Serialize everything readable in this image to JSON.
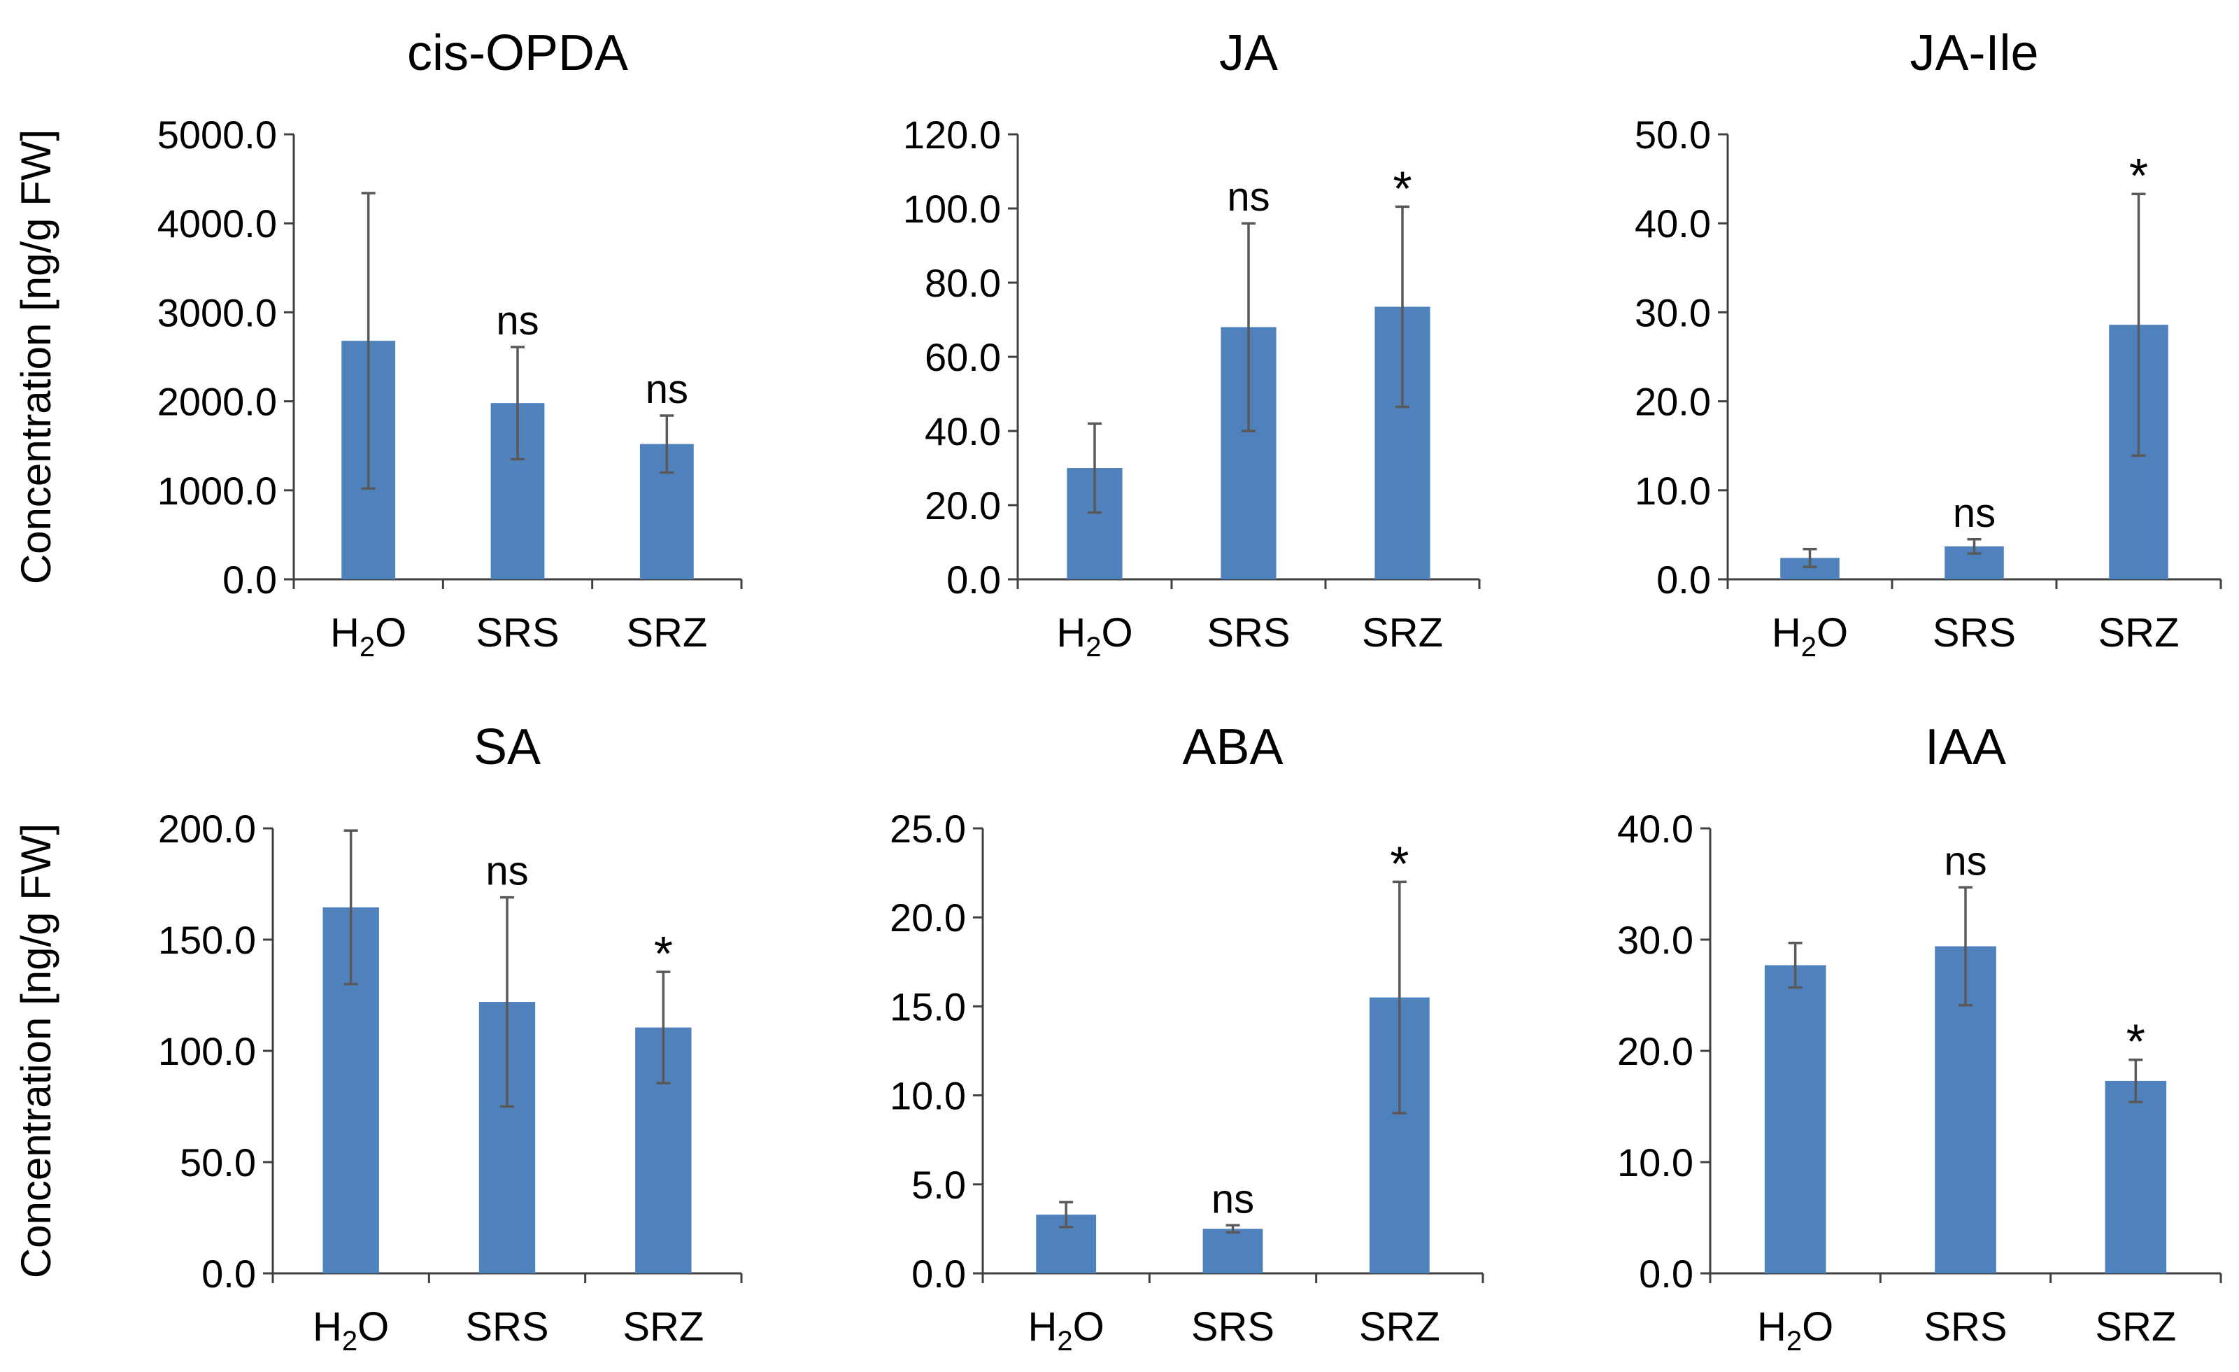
{
  "figure": {
    "y_axis_label": "Concentration [ng/g FW]",
    "bar_color": "#4F81BD",
    "error_color": "#595959",
    "axis_color": "#404040"
  },
  "chart_data": [
    {
      "type": "bar",
      "title": "cis-OPDA",
      "categories": [
        "H2O",
        "SRS",
        "SRZ"
      ],
      "values": [
        2680,
        1980,
        1520
      ],
      "errors": [
        1660,
        630,
        320
      ],
      "significance": [
        "",
        "ns",
        "ns"
      ],
      "ylim": [
        0,
        5000
      ],
      "yticks": [
        "0.0",
        "1000.0",
        "2000.0",
        "3000.0",
        "4000.0",
        "5000.0"
      ],
      "ylabel": "Concentration [ng/g FW]"
    },
    {
      "type": "bar",
      "title": "JA",
      "categories": [
        "H2O",
        "SRS",
        "SRZ"
      ],
      "values": [
        30,
        68,
        73.5
      ],
      "errors": [
        12,
        28,
        27
      ],
      "significance": [
        "",
        "ns",
        "*"
      ],
      "ylim": [
        0,
        120
      ],
      "yticks": [
        "0.0",
        "20.0",
        "40.0",
        "60.0",
        "80.0",
        "100.0",
        "120.0"
      ],
      "ylabel": ""
    },
    {
      "type": "bar",
      "title": "JA-Ile",
      "categories": [
        "H2O",
        "SRS",
        "SRZ"
      ],
      "values": [
        2.4,
        3.7,
        28.6
      ],
      "errors": [
        1.0,
        0.8,
        14.7
      ],
      "significance": [
        "",
        "ns",
        "*"
      ],
      "ylim": [
        0,
        50
      ],
      "yticks": [
        "0.0",
        "10.0",
        "20.0",
        "30.0",
        "40.0",
        "50.0"
      ],
      "ylabel": ""
    },
    {
      "type": "bar",
      "title": "SA",
      "categories": [
        "H2O",
        "SRS",
        "SRZ"
      ],
      "values": [
        164.5,
        122,
        110.5
      ],
      "errors": [
        34.5,
        47,
        25
      ],
      "significance": [
        "",
        "ns",
        "*"
      ],
      "ylim": [
        0,
        200
      ],
      "yticks": [
        "0.0",
        "50.0",
        "100.0",
        "150.0",
        "200.0"
      ],
      "ylabel": "Concentration [ng/g FW]"
    },
    {
      "type": "bar",
      "title": "ABA",
      "categories": [
        "H2O",
        "SRS",
        "SRZ"
      ],
      "values": [
        3.3,
        2.5,
        15.5
      ],
      "errors": [
        0.7,
        0.2,
        6.5
      ],
      "significance": [
        "",
        "ns",
        "*"
      ],
      "ylim": [
        0,
        25
      ],
      "yticks": [
        "0.0",
        "5.0",
        "10.0",
        "15.0",
        "20.0",
        "25.0"
      ],
      "ylabel": ""
    },
    {
      "type": "bar",
      "title": "IAA",
      "categories": [
        "H2O",
        "SRS",
        "SRZ"
      ],
      "values": [
        27.7,
        29.4,
        17.3
      ],
      "errors": [
        2.0,
        5.3,
        1.9
      ],
      "significance": [
        "",
        "ns",
        "*"
      ],
      "ylim": [
        0,
        40
      ],
      "yticks": [
        "0.0",
        "10.0",
        "20.0",
        "30.0",
        "40.0"
      ],
      "ylabel": ""
    }
  ]
}
